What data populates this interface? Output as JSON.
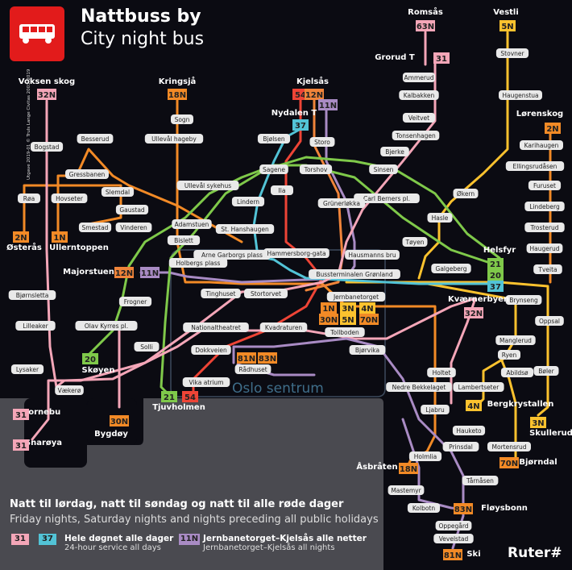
{
  "header": {
    "title": "Nattbuss by",
    "subtitle": "City night bus"
  },
  "credit": "Utgave 2019-01 © Truls Lange Civitas 2003–2019",
  "zone": {
    "label": "Oslo sentrum"
  },
  "legend": {
    "heading": "Natt til lørdag, natt til søndag og natt til alle røde dager",
    "subheading": "Friday nights, Saturday nights and nights preceding all public holidays",
    "allday_chip1": "31",
    "allday_chip2": "37",
    "allday_text": "Hele døgnet alle dager",
    "allday_text_en": "24-hour service all days",
    "night_chip": "11N",
    "night_text": "Jernbanetorget–Kjelsås alle netter",
    "night_text_en": "Jernbanetorget–Kjelsås all nights"
  },
  "brand": "Ruter#",
  "colors": {
    "bg": "#0b0b12",
    "zone": "#3a3f4a",
    "bus_icon": "#e21b1b",
    "31": "#f4a6b8",
    "37": "#52c3d6",
    "54": "#ee4436",
    "12N": "#f0843a",
    "11N": "#a98bc4",
    "2N": "#f28a26",
    "1N": "#f28a26",
    "18N": "#f28a26",
    "63N": "#f4a6b8",
    "32N": "#f4a6b8",
    "5N": "#fcc22e",
    "3N": "#fcc22e",
    "4N": "#fcc22e",
    "20": "#7fc94a",
    "21": "#7fc94a"
  },
  "terminals": [
    {
      "id": "voksen",
      "name": "Voksen skog",
      "line": "32N"
    },
    {
      "id": "kringsja",
      "name": "Kringsjå",
      "line": "18N"
    },
    {
      "id": "kjelsas",
      "name": "Kjelsås",
      "lines": [
        "54",
        "12N",
        "11N"
      ]
    },
    {
      "id": "nydalen",
      "name": "Nydalen T",
      "line": "37"
    },
    {
      "id": "romsas",
      "name": "Romsås",
      "line": "63N"
    },
    {
      "id": "grorud",
      "name": "Grorud T",
      "line": "31"
    },
    {
      "id": "vestli",
      "name": "Vestli",
      "line": "5N"
    },
    {
      "id": "lorenskog",
      "name": "Lørenskog",
      "line": "2N"
    },
    {
      "id": "helsfyr",
      "name": "Helsfyr",
      "lines": [
        "21",
        "20",
        "37"
      ]
    },
    {
      "id": "kvaerner",
      "name": "Kværnerbyen",
      "line": "32N"
    },
    {
      "id": "osteras",
      "name": "Østerås",
      "line": "2N"
    },
    {
      "id": "ullern",
      "name": "Ullerntoppen",
      "line": "1N"
    },
    {
      "id": "majorstuen",
      "name": "Majorstuen",
      "lines": [
        "12N",
        "11N"
      ]
    },
    {
      "id": "skoyen",
      "name": "Skøyen",
      "line": "20"
    },
    {
      "id": "fornebu",
      "name": "Fornebu",
      "line": "31"
    },
    {
      "id": "snaroya",
      "name": "Snarøya",
      "line": "31"
    },
    {
      "id": "bygdoy",
      "name": "Bygdøy",
      "line": "30N"
    },
    {
      "id": "tjuvholmen",
      "name": "Tjuvholmen",
      "lines": [
        "21",
        "54"
      ]
    },
    {
      "id": "berg",
      "name": "Bergkrystallen",
      "line": "4N"
    },
    {
      "id": "skullerud",
      "name": "Skullerud",
      "line": "3N"
    },
    {
      "id": "bjorndal",
      "name": "Bjørndal",
      "line": "70N"
    },
    {
      "id": "asbraten",
      "name": "Åsbråten",
      "line": "18N"
    },
    {
      "id": "floysbonn",
      "name": "Fløysbonn",
      "line": "83N"
    },
    {
      "id": "ski",
      "name": "Ski",
      "line": "81N"
    }
  ],
  "jernbanetorget_badges": [
    "1N",
    "3N",
    "4N",
    "30N",
    "5N",
    "70N"
  ],
  "radhuset_badges": [
    "81N",
    "83N"
  ],
  "stops": [
    "Ammerud",
    "Kalbakken",
    "Veitvet",
    "Tonsenhagen",
    "Bjerke",
    "Sinsen",
    "Carl Berners pl.",
    "Økern",
    "Hasle",
    "Tøyen",
    "Galgeberg",
    "Stovner",
    "Haugenstua",
    "Karihaugen",
    "Ellingsrudåsen",
    "Furuset",
    "Lindeberg",
    "Trosterud",
    "Haugerud",
    "Tveita",
    "Sogn",
    "Ullevål hageby",
    "Ullevål sykehus",
    "Adamstuen",
    "Bislett",
    "Bjølsen",
    "Storo",
    "Sagene",
    "Torshov",
    "Ila",
    "Lindern",
    "St. Hanshaugen",
    "Grünerløkka",
    "Bogstad",
    "Besserud",
    "Gressbanen",
    "Slemdal",
    "Røa",
    "Hovseter",
    "Gaustad",
    "Smestad",
    "Vinderen",
    "Holbergs plass",
    "Arne Garborgs plass",
    "Hammersborg-gata",
    "Hausmanns bru",
    "Bussterminalen Grønland",
    "Tinghuset",
    "Stortorvet",
    "Jernbanetorget",
    "Bjørnsletta",
    "Frogner",
    "Lilleaker",
    "Olav Kyrres pl.",
    "Solli",
    "Nationaltheatret",
    "Kvadraturen",
    "Tollboden",
    "Dokkveien",
    "Bjørvika",
    "Rådhuset",
    "Vika atrium",
    "Lysaker",
    "Vækerø",
    "Brynseng",
    "Oppsal",
    "Manglerud",
    "Ryen",
    "Bøler",
    "Abildsø",
    "Holtet",
    "Lambertseter",
    "Nedre Bekkelaget",
    "Ljabru",
    "Hauketo",
    "Prinsdal",
    "Holmlia",
    "Tårnåsen",
    "Mastemyr",
    "Kolbotn",
    "Oppegård",
    "Vevelstad",
    "Mortensrud"
  ]
}
